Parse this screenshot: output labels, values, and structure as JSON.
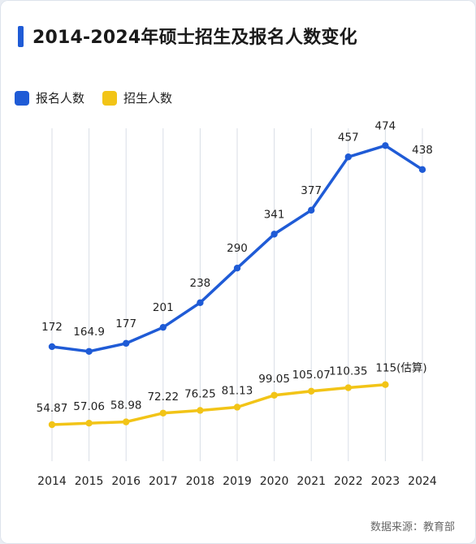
{
  "title": "2014-2024年硕士招生及报名人数变化",
  "source_text": "数据来源：教育部",
  "colors": {
    "accent": "#1f5bd6",
    "series_1": "#1f5bd6",
    "series_2": "#f2c417",
    "grid": "#d9dee6",
    "text": "#222222"
  },
  "chart_data": {
    "type": "line",
    "title": "2014-2024年硕士招生及报名人数变化",
    "xlabel": "",
    "ylabel": "",
    "legend_position": "top-left",
    "grid": "vertical",
    "ylim": [
      0,
      500
    ],
    "x": [
      "2014",
      "2015",
      "2016",
      "2017",
      "2018",
      "2019",
      "2020",
      "2021",
      "2022",
      "2023",
      "2024"
    ],
    "series": [
      {
        "name": "报名人数",
        "color": "#1f5bd6",
        "values": [
          172,
          164.9,
          177,
          201,
          238,
          290,
          341,
          377,
          457,
          474,
          438
        ],
        "labels": [
          "172",
          "164.9",
          "177",
          "201",
          "238",
          "290",
          "341",
          "377",
          "457",
          "474",
          "438"
        ]
      },
      {
        "name": "招生人数",
        "color": "#f2c417",
        "values": [
          54.87,
          57.06,
          58.98,
          72.22,
          76.25,
          81.13,
          99.05,
          105.07,
          110.35,
          115,
          null
        ],
        "labels": [
          "54.87",
          "57.06",
          "58.98",
          "72.22",
          "76.25",
          "81.13",
          "99.05",
          "105.07",
          "110.35",
          "115(估算)",
          ""
        ]
      }
    ]
  }
}
